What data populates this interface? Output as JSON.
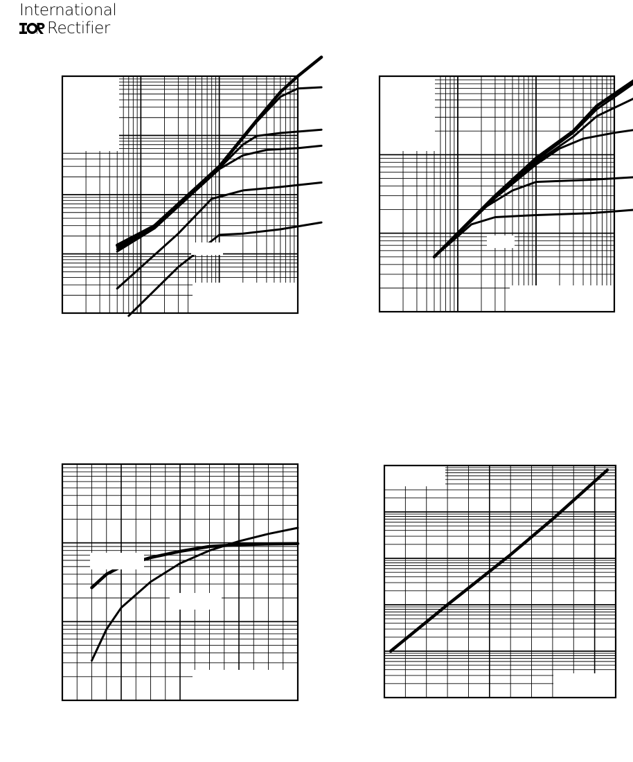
{
  "header": {
    "brand_line1": "International",
    "brand_line2": "Rectifier",
    "logo_mark": "IOR"
  },
  "chart_data": [
    {
      "type": "line",
      "x_scale": "log",
      "y_scale": "log",
      "x_decades": 3,
      "y_decades": 4,
      "grid": true,
      "series": [
        {
          "values": [
            [
              0.05,
              14
            ],
            [
              0.15,
              30
            ],
            [
              1,
              300
            ],
            [
              3,
              1800
            ],
            [
              6,
              5400
            ],
            [
              10,
              10000
            ],
            [
              20,
              21000
            ]
          ]
        },
        {
          "values": [
            [
              0.05,
              13
            ],
            [
              0.15,
              29
            ],
            [
              1,
              290
            ],
            [
              3,
              1700
            ],
            [
              6,
              4500
            ],
            [
              10,
              6200
            ],
            [
              20,
              6500
            ]
          ]
        },
        {
          "values": [
            [
              0.05,
              12
            ],
            [
              0.15,
              28
            ],
            [
              1,
              280
            ],
            [
              2,
              700
            ],
            [
              3,
              980
            ],
            [
              6,
              1100
            ],
            [
              20,
              1250
            ]
          ]
        },
        {
          "values": [
            [
              0.05,
              11
            ],
            [
              0.15,
              27
            ],
            [
              1,
              270
            ],
            [
              2,
              460
            ],
            [
              4,
              570
            ],
            [
              10,
              610
            ],
            [
              20,
              670
            ]
          ]
        },
        {
          "values": [
            [
              0.05,
              2.6
            ],
            [
              0.3,
              22
            ],
            [
              0.8,
              85
            ],
            [
              2,
              118
            ],
            [
              6,
              135
            ],
            [
              20,
              160
            ]
          ]
        },
        {
          "values": [
            [
              0.07,
              0.9
            ],
            [
              0.3,
              6
            ],
            [
              1,
              21
            ],
            [
              2,
              22
            ],
            [
              6,
              26
            ],
            [
              20,
              34
            ]
          ]
        }
      ]
    },
    {
      "type": "line",
      "x_scale": "log",
      "y_scale": "log",
      "x_decades": 3,
      "y_decades": 3,
      "grid": true,
      "series": [
        {
          "values": [
            [
              0.05,
              5
            ],
            [
              0.3,
              30
            ],
            [
              1,
              90
            ],
            [
              3,
              200
            ],
            [
              6,
              420
            ],
            [
              20,
              950
            ]
          ]
        },
        {
          "values": [
            [
              0.05,
              5
            ],
            [
              0.3,
              30
            ],
            [
              1,
              85
            ],
            [
              3,
              190
            ],
            [
              6,
              380
            ],
            [
              20,
              880
            ]
          ]
        },
        {
          "values": [
            [
              0.05,
              5
            ],
            [
              0.3,
              29
            ],
            [
              1,
              80
            ],
            [
              3,
              170
            ],
            [
              6,
              310
            ],
            [
              20,
              550
            ]
          ]
        },
        {
          "values": [
            [
              0.05,
              5
            ],
            [
              0.3,
              28
            ],
            [
              1,
              75
            ],
            [
              2,
              120
            ],
            [
              4,
              160
            ],
            [
              10,
              190
            ],
            [
              20,
              210
            ]
          ]
        },
        {
          "values": [
            [
              0.05,
              5
            ],
            [
              0.2,
              20
            ],
            [
              0.5,
              35
            ],
            [
              1,
              45
            ],
            [
              5,
              48
            ],
            [
              20,
              52
            ]
          ]
        },
        {
          "values": [
            [
              0.05,
              5
            ],
            [
              0.15,
              13
            ],
            [
              0.3,
              16
            ],
            [
              1,
              17
            ],
            [
              5,
              18
            ],
            [
              20,
              20
            ]
          ]
        }
      ]
    },
    {
      "type": "line",
      "x_scale": "linear",
      "y_scale": "log",
      "xlim": [
        0,
        8
      ],
      "y_decades": 3,
      "grid": true,
      "series": [
        {
          "values": [
            [
              1,
              2.7
            ],
            [
              1.5,
              4.0
            ],
            [
              2,
              5.0
            ],
            [
              3,
              6.5
            ],
            [
              4,
              7.8
            ],
            [
              5,
              9.0
            ],
            [
              6,
              9.5
            ],
            [
              7,
              9.7
            ],
            [
              8,
              9.8
            ]
          ]
        },
        {
          "values": [
            [
              1,
              0.32
            ],
            [
              1.5,
              0.8
            ],
            [
              2,
              1.5
            ],
            [
              3,
              3.2
            ],
            [
              4,
              5.5
            ],
            [
              5,
              8.0
            ],
            [
              6,
              10.5
            ],
            [
              7,
              13.0
            ],
            [
              8,
              15.5
            ]
          ]
        }
      ]
    },
    {
      "type": "line",
      "x_scale": "linear",
      "y_scale": "log",
      "xlim": [
        0,
        11
      ],
      "y_decades": 5,
      "grid": true,
      "series": [
        {
          "values": [
            [
              0.3,
              1.0
            ],
            [
              3,
              10
            ],
            [
              6,
              120
            ],
            [
              8,
              700
            ],
            [
              10.6,
              8000
            ]
          ]
        }
      ]
    }
  ],
  "colors": {
    "ink": "#000000",
    "background": "#ffffff"
  }
}
